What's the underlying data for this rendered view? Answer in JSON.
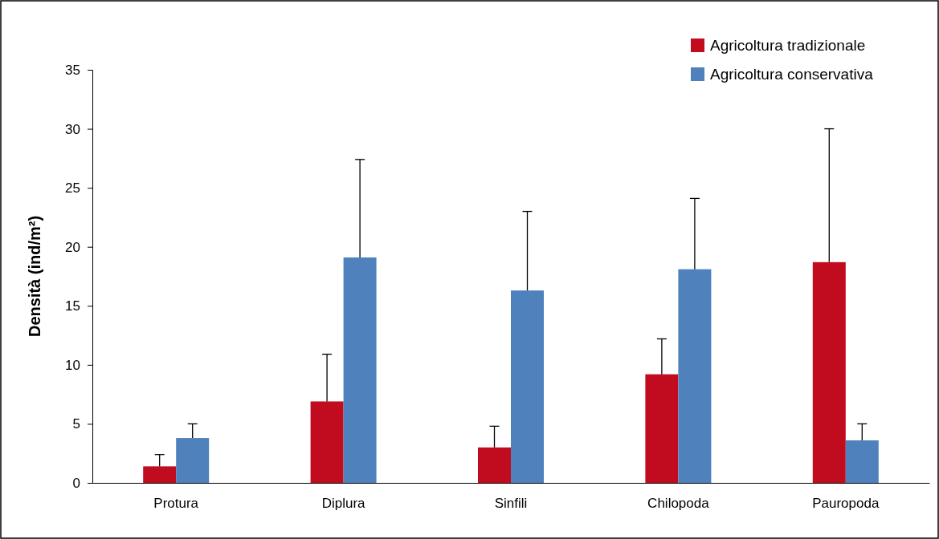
{
  "chart_data": {
    "type": "bar",
    "ylabel": "Densità (ind/m²)",
    "categories": [
      "Protura",
      "Diplura",
      "Sinfili",
      "Chilopoda",
      "Pauropoda"
    ],
    "series": [
      {
        "name": "Agricoltura tradizionale",
        "color": "#c00c1e",
        "values": [
          1.4,
          6.9,
          3.0,
          9.2,
          18.7
        ],
        "errors": [
          [
            1.4,
            2.4
          ],
          [
            6.9,
            10.9
          ],
          [
            3.0,
            4.8
          ],
          [
            9.2,
            12.2
          ],
          [
            18.7,
            30.0
          ]
        ]
      },
      {
        "name": "Agricoltura conservativa",
        "color": "#4f81bd",
        "values": [
          3.8,
          19.1,
          16.3,
          18.1,
          3.6
        ],
        "errors": [
          [
            3.8,
            5.0
          ],
          [
            19.1,
            27.4
          ],
          [
            16.3,
            23.0
          ],
          [
            18.1,
            24.1
          ],
          [
            3.6,
            5.0
          ]
        ]
      }
    ],
    "ylim": [
      0,
      35
    ],
    "yticks": [
      0,
      5,
      10,
      15,
      20,
      25,
      30,
      35
    ],
    "grid": false,
    "legend": "top right"
  }
}
